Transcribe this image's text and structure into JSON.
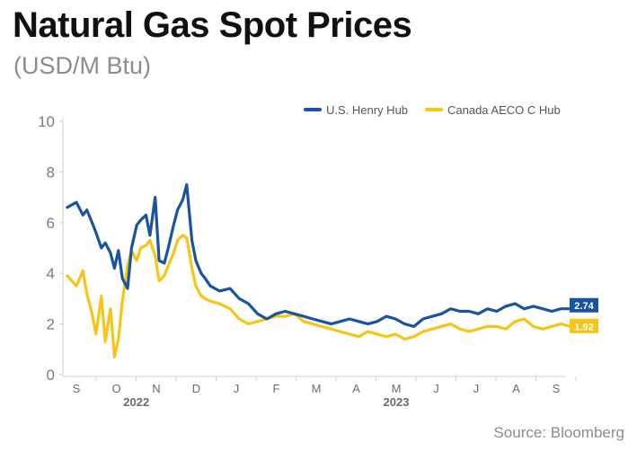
{
  "title": "Natural Gas Spot Prices",
  "subtitle": "(USD/M Btu)",
  "source": "Source: Bloomberg",
  "chart_data": {
    "type": "line",
    "title": "Natural Gas Spot Prices",
    "subtitle": "(USD/M Btu)",
    "ylim": [
      0,
      10
    ],
    "y_ticks": [
      0,
      2,
      4,
      6,
      8,
      10
    ],
    "grid": false,
    "legend_position": "top-right",
    "x_month_labels": [
      "S",
      "O",
      "N",
      "D",
      "J",
      "F",
      "M",
      "A",
      "M",
      "J",
      "J",
      "A",
      "S"
    ],
    "x_year_labels": [
      {
        "label": "2022",
        "month_index": 1.5
      },
      {
        "label": "2023",
        "month_index": 8
      }
    ],
    "x": [
      "2022-08-25",
      "2022-09-01",
      "2022-09-06",
      "2022-09-09",
      "2022-09-13",
      "2022-09-16",
      "2022-09-20",
      "2022-09-23",
      "2022-09-27",
      "2022-09-30",
      "2022-10-03",
      "2022-10-06",
      "2022-10-10",
      "2022-10-13",
      "2022-10-17",
      "2022-10-20",
      "2022-10-24",
      "2022-10-27",
      "2022-10-31",
      "2022-11-03",
      "2022-11-07",
      "2022-11-10",
      "2022-11-14",
      "2022-11-17",
      "2022-11-21",
      "2022-11-24",
      "2022-11-28",
      "2022-12-01",
      "2022-12-05",
      "2022-12-08",
      "2022-12-12",
      "2022-12-19",
      "2022-12-27",
      "2023-01-03",
      "2023-01-10",
      "2023-01-17",
      "2023-01-24",
      "2023-01-31",
      "2023-02-07",
      "2023-02-14",
      "2023-02-21",
      "2023-02-28",
      "2023-03-07",
      "2023-03-14",
      "2023-03-21",
      "2023-03-28",
      "2023-04-04",
      "2023-04-11",
      "2023-04-18",
      "2023-04-25",
      "2023-05-02",
      "2023-05-09",
      "2023-05-16",
      "2023-05-23",
      "2023-05-30",
      "2023-06-06",
      "2023-06-13",
      "2023-06-20",
      "2023-06-27",
      "2023-07-04",
      "2023-07-11",
      "2023-07-18",
      "2023-07-25",
      "2023-08-01",
      "2023-08-08",
      "2023-08-15",
      "2023-08-22",
      "2023-08-29",
      "2023-09-05",
      "2023-09-12",
      "2023-09-19",
      "2023-09-25"
    ],
    "series": [
      {
        "name": "U.S. Henry Hub",
        "color": "#1a54a0",
        "end_label": "2.74",
        "values": [
          6.6,
          6.8,
          6.3,
          6.5,
          6.0,
          5.6,
          5.0,
          5.2,
          4.8,
          4.2,
          4.9,
          3.8,
          3.4,
          5.0,
          5.9,
          6.1,
          6.3,
          5.5,
          7.0,
          4.5,
          4.4,
          5.0,
          5.9,
          6.5,
          6.9,
          7.5,
          5.3,
          4.5,
          4.0,
          3.8,
          3.5,
          3.3,
          3.4,
          3.0,
          2.8,
          2.4,
          2.2,
          2.4,
          2.5,
          2.4,
          2.3,
          2.2,
          2.1,
          2.0,
          2.1,
          2.2,
          2.1,
          2.0,
          2.1,
          2.3,
          2.2,
          2.0,
          1.9,
          2.2,
          2.3,
          2.4,
          2.6,
          2.5,
          2.5,
          2.4,
          2.6,
          2.5,
          2.7,
          2.8,
          2.6,
          2.7,
          2.6,
          2.5,
          2.6,
          2.6,
          2.7,
          2.74
        ]
      },
      {
        "name": "Canada AECO C Hub",
        "color": "#f5c518",
        "end_label": "1.92",
        "values": [
          3.9,
          3.5,
          4.1,
          3.2,
          2.4,
          1.6,
          3.1,
          1.3,
          2.6,
          0.7,
          1.4,
          2.9,
          4.3,
          4.9,
          4.5,
          5.0,
          5.1,
          5.3,
          4.7,
          3.7,
          3.9,
          4.3,
          4.8,
          5.3,
          5.5,
          5.4,
          4.2,
          3.5,
          3.1,
          3.0,
          2.9,
          2.8,
          2.6,
          2.2,
          2.0,
          2.1,
          2.2,
          2.3,
          2.3,
          2.4,
          2.1,
          2.0,
          1.9,
          1.8,
          1.7,
          1.6,
          1.5,
          1.7,
          1.6,
          1.5,
          1.6,
          1.4,
          1.5,
          1.7,
          1.8,
          1.9,
          2.0,
          1.8,
          1.7,
          1.8,
          1.9,
          1.9,
          1.8,
          2.1,
          2.2,
          1.9,
          1.8,
          1.9,
          2.0,
          1.9,
          1.8,
          1.92
        ]
      }
    ]
  }
}
